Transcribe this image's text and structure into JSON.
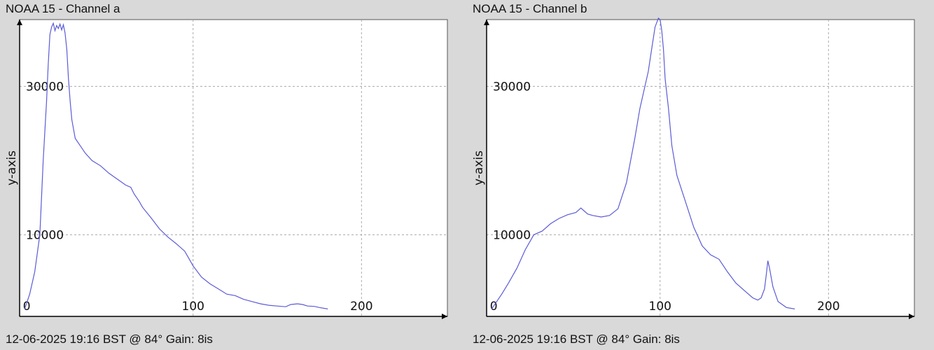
{
  "chart_data": [
    {
      "type": "line",
      "title": "NOAA 15 - Channel a",
      "footer": "12-06-2025 19:16 BST @ 84° Gain: 8is",
      "xlabel": "",
      "ylabel": "y-axis",
      "xlim": [
        -3,
        251
      ],
      "ylim": [
        -1000,
        39000
      ],
      "grid": true,
      "x_ticks": [
        0,
        100,
        200
      ],
      "x_tick_labels": [
        "0",
        "100",
        "200"
      ],
      "y_ticks": [
        10000,
        30000
      ],
      "y_tick_labels": [
        "10000",
        "30000"
      ],
      "series": [
        {
          "color": "#5b5bd6",
          "x": [
            0,
            3,
            6,
            9,
            11,
            13,
            14,
            15,
            16,
            17,
            18,
            19,
            20,
            21,
            22,
            23,
            24,
            25,
            26,
            27,
            28,
            30,
            33,
            36,
            40,
            45,
            50,
            55,
            60,
            63,
            65,
            68,
            70,
            75,
            80,
            85,
            90,
            95,
            97,
            100,
            105,
            110,
            115,
            120,
            125,
            130,
            135,
            140,
            145,
            150,
            155,
            158,
            162,
            165,
            168,
            172,
            175,
            180
          ],
          "y": [
            0,
            2000,
            5000,
            10000,
            20000,
            28000,
            33000,
            37000,
            38000,
            38500,
            37500,
            38200,
            37800,
            38400,
            37600,
            38300,
            37200,
            35000,
            31000,
            28000,
            25500,
            23000,
            22000,
            21000,
            20000,
            19300,
            18300,
            17500,
            16700,
            16400,
            15500,
            14500,
            13700,
            12300,
            10800,
            9700,
            8800,
            7800,
            7000,
            5800,
            4300,
            3400,
            2700,
            2000,
            1800,
            1300,
            1000,
            700,
            500,
            400,
            300,
            600,
            700,
            600,
            400,
            350,
            200,
            0
          ]
        }
      ]
    },
    {
      "type": "line",
      "title": "NOAA 15 - Channel b",
      "footer": "12-06-2025 19:16 BST @ 84° Gain: 8is",
      "xlabel": "",
      "ylabel": "y-axis",
      "xlim": [
        -3,
        251
      ],
      "ylim": [
        -1000,
        39000
      ],
      "grid": true,
      "x_ticks": [
        0,
        100,
        200
      ],
      "x_tick_labels": [
        "0",
        "100",
        "200"
      ],
      "y_ticks": [
        10000,
        30000
      ],
      "y_tick_labels": [
        "10000",
        "30000"
      ],
      "series": [
        {
          "color": "#5b5bd6",
          "x": [
            0,
            3,
            6,
            10,
            15,
            20,
            25,
            30,
            35,
            40,
            45,
            50,
            53,
            55,
            57,
            60,
            65,
            70,
            75,
            80,
            85,
            88,
            90,
            93,
            95,
            97,
            99,
            100,
            101,
            102,
            103,
            105,
            107,
            110,
            115,
            120,
            125,
            130,
            135,
            140,
            145,
            150,
            155,
            158,
            160,
            162,
            163,
            164,
            165,
            167,
            170,
            175,
            180
          ],
          "y": [
            0,
            1000,
            2000,
            3500,
            5500,
            8000,
            10000,
            10500,
            11500,
            12200,
            12700,
            13000,
            13600,
            13200,
            12800,
            12600,
            12400,
            12600,
            13500,
            17000,
            23000,
            27000,
            29000,
            32000,
            35000,
            38000,
            39200,
            39000,
            37500,
            35000,
            31000,
            27000,
            22000,
            18000,
            14500,
            11000,
            8500,
            7300,
            6700,
            5000,
            3500,
            2500,
            1500,
            1200,
            1500,
            2700,
            4500,
            6500,
            5500,
            3000,
            1000,
            200,
            0
          ]
        }
      ]
    }
  ]
}
